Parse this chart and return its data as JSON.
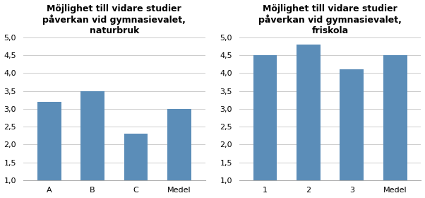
{
  "chart1": {
    "title": "Möjlighet till vidare studier\npåverkan vid gymnasievalet,\nnaturbruk",
    "categories": [
      "A",
      "B",
      "C",
      "Medel"
    ],
    "values": [
      3.2,
      3.5,
      2.3,
      3.0
    ],
    "bar_color": "#5b8db8",
    "ylim": [
      1.0,
      5.0
    ],
    "yticks": [
      1.0,
      1.5,
      2.0,
      2.5,
      3.0,
      3.5,
      4.0,
      4.5,
      5.0
    ]
  },
  "chart2": {
    "title": "Möjlighet till vidare studier\npåverkan vid gymnasievalet,\nfriskola",
    "categories": [
      "1",
      "2",
      "3",
      "Medel"
    ],
    "values": [
      4.5,
      4.8,
      4.1,
      4.5
    ],
    "bar_color": "#5b8db8",
    "ylim": [
      1.0,
      5.0
    ],
    "yticks": [
      1.0,
      1.5,
      2.0,
      2.5,
      3.0,
      3.5,
      4.0,
      4.5,
      5.0
    ]
  },
  "background_color": "#ffffff",
  "title_fontsize": 9,
  "tick_fontsize": 8,
  "bar_width": 0.55,
  "bar_bottom": 1.0
}
